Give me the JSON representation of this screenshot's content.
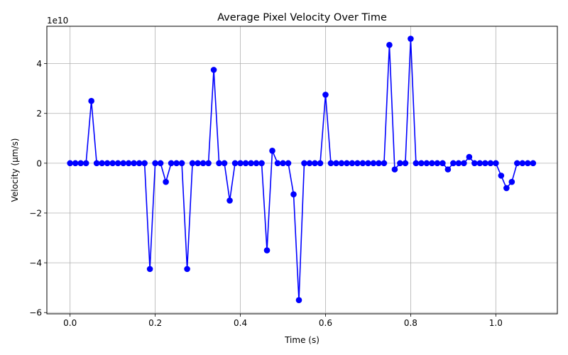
{
  "chart_data": {
    "type": "line",
    "title": "Average Pixel Velocity Over Time",
    "xlabel": "Time (s)",
    "ylabel": "Velocity (µm/s)",
    "y_offset_text": "1e10",
    "xlim": [
      -0.0545,
      1.1445
    ],
    "ylim": [
      -6.05,
      5.5
    ],
    "x_ticks": [
      0.0,
      0.2,
      0.4,
      0.6,
      0.8,
      1.0
    ],
    "x_tick_labels": [
      "0.0",
      "0.2",
      "0.4",
      "0.6",
      "0.8",
      "1.0"
    ],
    "y_ticks": [
      -6,
      -4,
      -2,
      0,
      2,
      4
    ],
    "y_tick_labels": [
      "−6",
      "−4",
      "−2",
      "0",
      "2",
      "4"
    ],
    "grid": true,
    "series": [
      {
        "color": "#0000ff",
        "marker": "circle",
        "x": [
          0.0,
          0.0125,
          0.025,
          0.0375,
          0.05,
          0.0625,
          0.075,
          0.0875,
          0.1,
          0.1125,
          0.125,
          0.1375,
          0.15,
          0.1625,
          0.175,
          0.1875,
          0.2,
          0.2125,
          0.225,
          0.2375,
          0.25,
          0.2625,
          0.275,
          0.2875,
          0.3,
          0.3125,
          0.325,
          0.3375,
          0.35,
          0.3625,
          0.375,
          0.3875,
          0.4,
          0.4125,
          0.425,
          0.4375,
          0.45,
          0.4625,
          0.475,
          0.4875,
          0.5,
          0.5125,
          0.525,
          0.5375,
          0.55,
          0.5625,
          0.575,
          0.5875,
          0.6,
          0.6125,
          0.625,
          0.6375,
          0.65,
          0.6625,
          0.675,
          0.6875,
          0.7,
          0.7125,
          0.725,
          0.7375,
          0.75,
          0.7625,
          0.775,
          0.7875,
          0.8,
          0.8125,
          0.825,
          0.8375,
          0.85,
          0.8625,
          0.875,
          0.8875,
          0.9,
          0.9125,
          0.925,
          0.9375,
          0.95,
          0.9625,
          0.975,
          0.9875,
          1.0,
          1.0125,
          1.025,
          1.0375,
          1.05,
          1.0625,
          1.075,
          1.0875
        ],
        "y": [
          0,
          0,
          0,
          0,
          2.5,
          0,
          0,
          0,
          0,
          0,
          0,
          0,
          0,
          0,
          0,
          -4.25,
          0,
          0,
          -0.75,
          0,
          0,
          0,
          -4.25,
          0,
          0,
          0,
          0,
          3.75,
          0,
          0,
          -1.5,
          0,
          0,
          0,
          0,
          0,
          0,
          -3.5,
          0.5,
          0,
          0,
          0,
          -1.25,
          -5.5,
          0,
          0,
          0,
          0,
          2.75,
          0,
          0,
          0,
          0,
          0,
          0,
          0,
          0,
          0,
          0,
          0,
          4.75,
          -0.25,
          0,
          0,
          5.0,
          0,
          0,
          0,
          0,
          0,
          0,
          -0.25,
          0,
          0,
          0,
          0.25,
          0,
          0,
          0,
          0,
          0,
          -0.5,
          -1.0,
          -0.75,
          0,
          0,
          0,
          0
        ]
      }
    ]
  }
}
